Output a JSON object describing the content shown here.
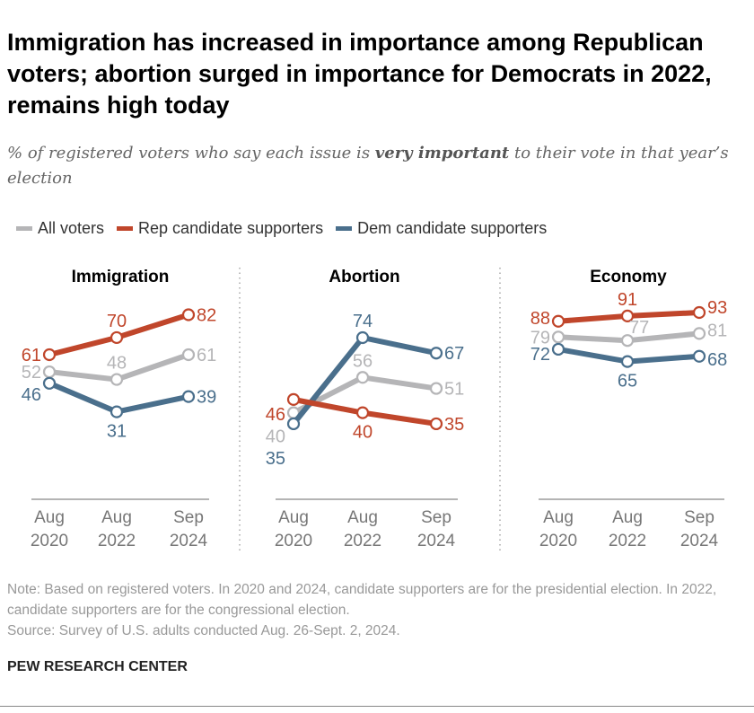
{
  "title": "Immigration has increased in importance among Republican voters; abortion surged in importance for Democrats in 2022, remains high today",
  "subtitle": {
    "pre": "% of registered voters who say each issue is ",
    "emph": "very important",
    "post": " to their vote in that year’s election"
  },
  "legend": [
    {
      "label": "All voters",
      "color": "#b5b5b7"
    },
    {
      "label": "Rep candidate supporters",
      "color": "#c0462b"
    },
    {
      "label": "Dem candidate supporters",
      "color": "#4a6f8c"
    }
  ],
  "chart_data": [
    {
      "type": "line",
      "title": "Immigration",
      "categories": [
        "Aug 2020",
        "Aug 2022",
        "Sep 2024"
      ],
      "series": [
        {
          "name": "All voters",
          "values": [
            52,
            48,
            61
          ]
        },
        {
          "name": "Rep candidate supporters",
          "values": [
            61,
            70,
            82
          ]
        },
        {
          "name": "Dem candidate supporters",
          "values": [
            46,
            31,
            39
          ]
        }
      ]
    },
    {
      "type": "line",
      "title": "Abortion",
      "categories": [
        "Aug 2020",
        "Aug 2022",
        "Sep 2024"
      ],
      "series": [
        {
          "name": "All voters",
          "values": [
            40,
            56,
            51
          ]
        },
        {
          "name": "Rep candidate supporters",
          "values": [
            46,
            40,
            35
          ]
        },
        {
          "name": "Dem candidate supporters",
          "values": [
            35,
            74,
            67
          ]
        }
      ]
    },
    {
      "type": "line",
      "title": "Economy",
      "categories": [
        "Aug 2020",
        "Aug 2022",
        "Sep 2024"
      ],
      "series": [
        {
          "name": "All voters",
          "values": [
            79,
            77,
            81
          ]
        },
        {
          "name": "Rep candidate supporters",
          "values": [
            88,
            91,
            93
          ]
        },
        {
          "name": "Dem candidate supporters",
          "values": [
            72,
            65,
            68
          ]
        }
      ]
    }
  ],
  "note": "Note: Based on registered voters. In 2020 and 2024, candidate supporters are for the presidential election. In 2022, candidate supporters are for the congressional election.",
  "source": "Source: Survey of U.S. adults conducted Aug. 26-Sept. 2, 2024.",
  "brand": "PEW RESEARCH CENTER"
}
